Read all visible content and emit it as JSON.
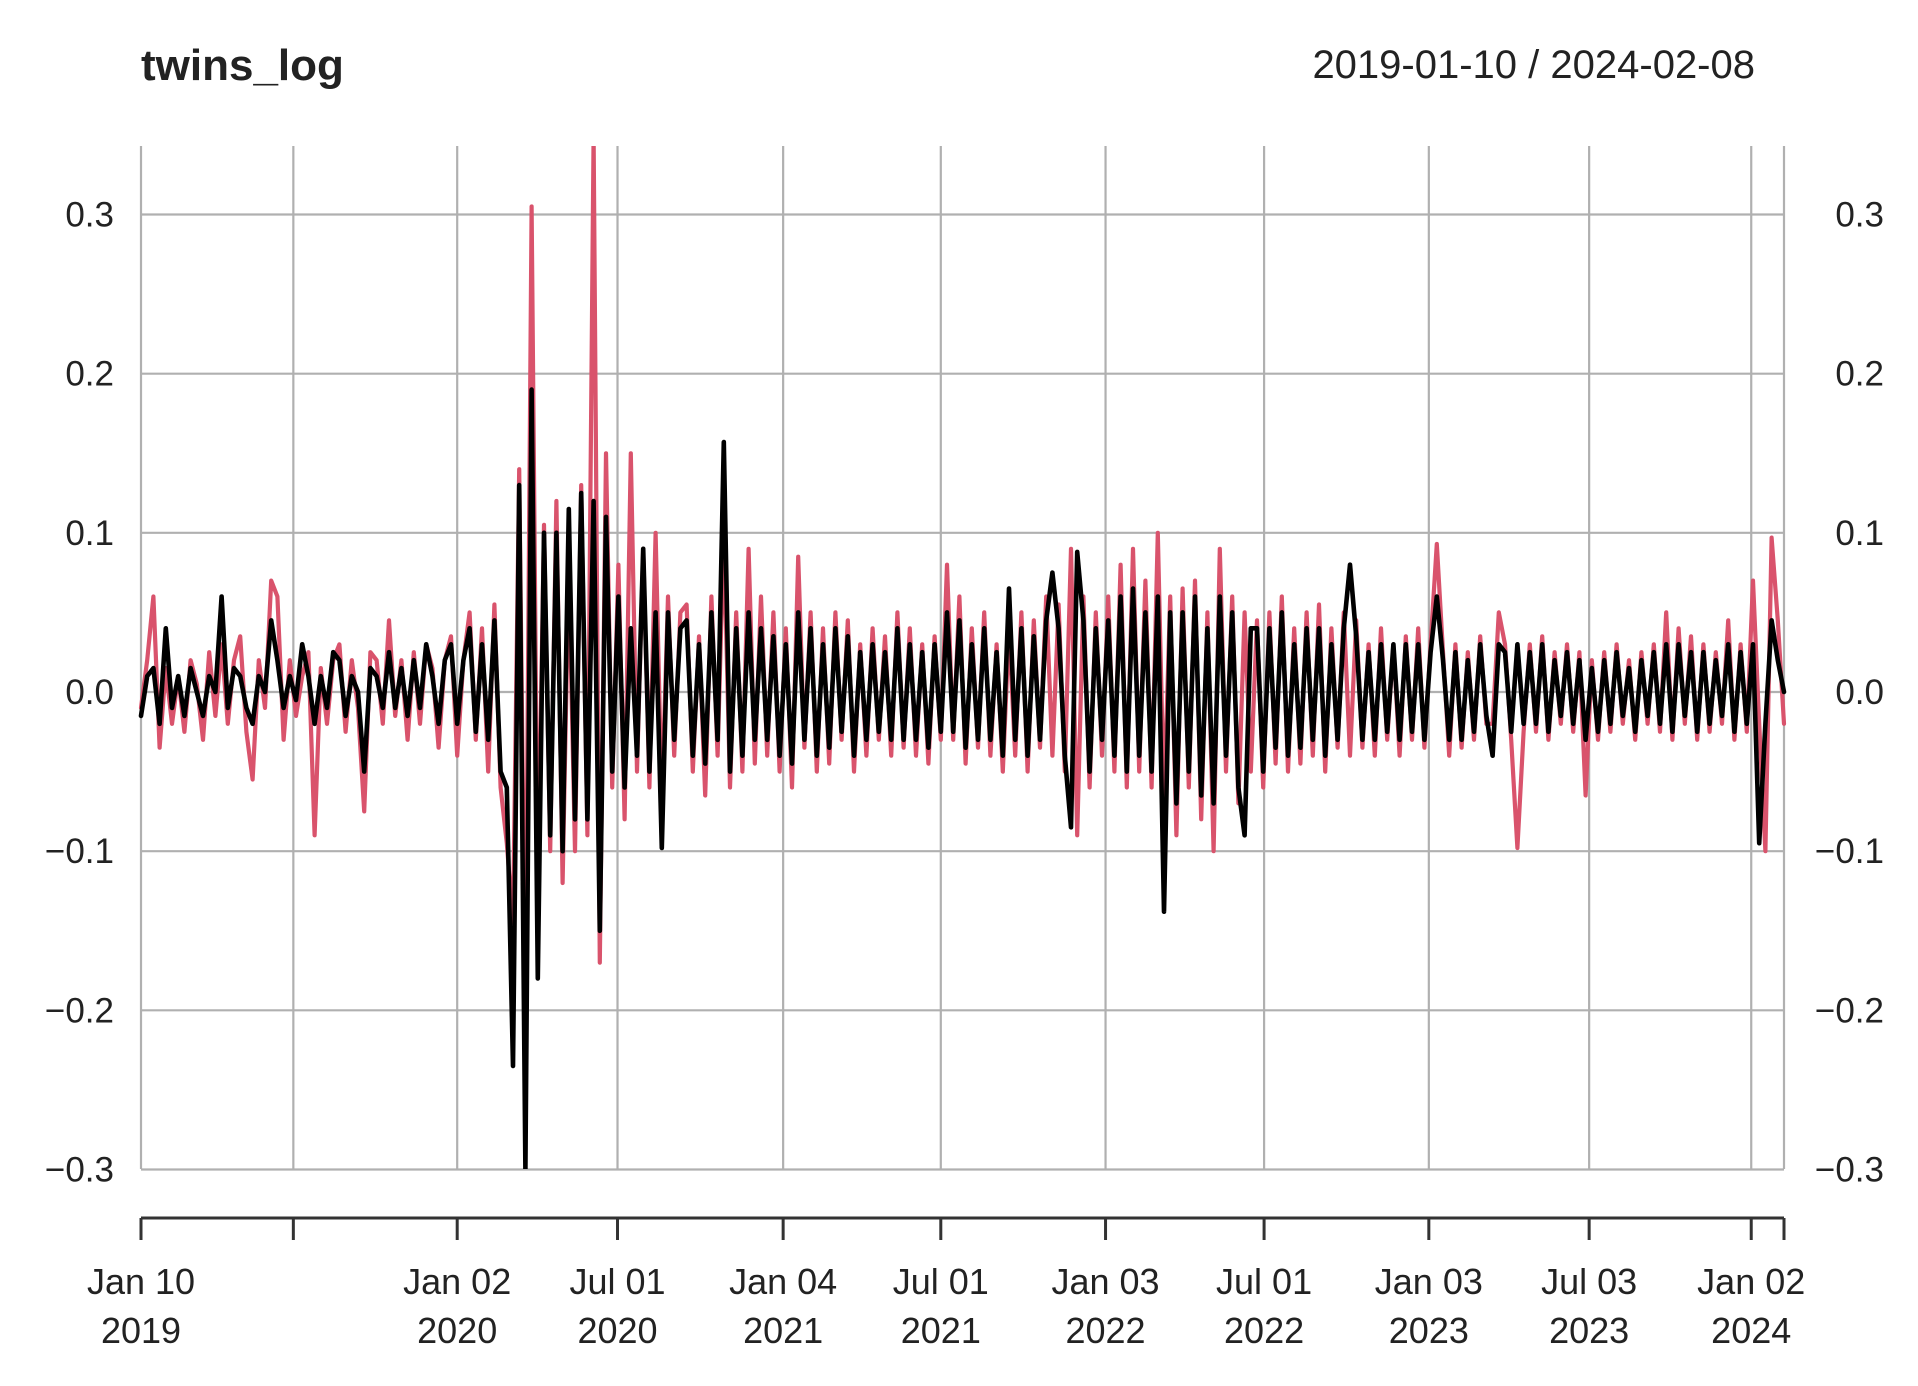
{
  "chart_data": {
    "type": "line",
    "title": "twins_log",
    "date_range_label": "2019-01-10 / 2024-02-08",
    "xlabel": "",
    "ylabel": "",
    "x_start": "2019-01-10",
    "x_end": "2024-02-08",
    "step_days": 7,
    "ylim": [
      -0.3,
      0.343
    ],
    "grid": true,
    "legend": "none",
    "y_ticks": [
      {
        "value": 0.3,
        "label": "0.3"
      },
      {
        "value": 0.2,
        "label": "0.2"
      },
      {
        "value": 0.1,
        "label": "0.1"
      },
      {
        "value": 0.0,
        "label": "0.0"
      },
      {
        "value": -0.1,
        "label": "−0.1"
      },
      {
        "value": -0.2,
        "label": "−0.2"
      },
      {
        "value": -0.3,
        "label": "−0.3"
      }
    ],
    "x_ticks": [
      {
        "date": "2019-01-10",
        "line1": "Jan 10",
        "line2": "2019"
      },
      {
        "date": "2019-07-01",
        "line1": "",
        "line2": ""
      },
      {
        "date": "2020-01-02",
        "line1": "Jan 02",
        "line2": "2020"
      },
      {
        "date": "2020-07-01",
        "line1": "Jul 01",
        "line2": "2020"
      },
      {
        "date": "2021-01-04",
        "line1": "Jan 04",
        "line2": "2021"
      },
      {
        "date": "2021-07-01",
        "line1": "Jul 01",
        "line2": "2021"
      },
      {
        "date": "2022-01-03",
        "line1": "Jan 03",
        "line2": "2022"
      },
      {
        "date": "2022-07-01",
        "line1": "Jul 01",
        "line2": "2022"
      },
      {
        "date": "2023-01-03",
        "line1": "Jan 03",
        "line2": "2023"
      },
      {
        "date": "2023-07-03",
        "line1": "Jul 03",
        "line2": "2023"
      },
      {
        "date": "2024-01-02",
        "line1": "Jan 02",
        "line2": "2024"
      },
      {
        "date": "2024-02-08",
        "line1": "",
        "line2": ""
      }
    ],
    "series": [
      {
        "name": "series-red",
        "color": "#D9536C",
        "values": [
          -0.01,
          0.02,
          0.06,
          -0.035,
          0.015,
          -0.02,
          0.01,
          -0.025,
          0.02,
          0.005,
          -0.03,
          0.025,
          -0.015,
          0.03,
          -0.02,
          0.02,
          0.035,
          -0.025,
          -0.055,
          0.02,
          -0.01,
          0.07,
          0.06,
          -0.03,
          0.02,
          -0.015,
          0.01,
          0.025,
          -0.09,
          0.015,
          -0.02,
          0.02,
          0.03,
          -0.025,
          0.02,
          -0.01,
          -0.075,
          0.025,
          0.02,
          -0.02,
          0.045,
          -0.015,
          0.02,
          -0.03,
          0.025,
          -0.02,
          0.03,
          0.015,
          -0.035,
          0.02,
          0.035,
          -0.04,
          0.02,
          0.05,
          -0.03,
          0.04,
          -0.05,
          0.055,
          -0.06,
          -0.095,
          -0.145,
          0.14,
          -0.2,
          0.305,
          -0.13,
          0.105,
          -0.1,
          0.12,
          -0.12,
          0.08,
          -0.1,
          0.13,
          -0.09,
          0.35,
          -0.17,
          0.15,
          -0.06,
          0.08,
          -0.08,
          0.15,
          -0.05,
          0.09,
          -0.06,
          0.1,
          -0.07,
          0.06,
          -0.04,
          0.05,
          0.055,
          -0.05,
          0.035,
          -0.065,
          0.06,
          -0.04,
          0.1,
          -0.06,
          0.05,
          -0.05,
          0.09,
          -0.045,
          0.06,
          -0.04,
          0.05,
          -0.05,
          0.04,
          -0.06,
          0.085,
          -0.035,
          0.05,
          -0.05,
          0.04,
          -0.045,
          0.05,
          -0.03,
          0.045,
          -0.05,
          0.03,
          -0.04,
          0.04,
          -0.03,
          0.035,
          -0.04,
          0.05,
          -0.035,
          0.04,
          -0.04,
          0.03,
          -0.045,
          0.035,
          -0.03,
          0.08,
          -0.03,
          0.06,
          -0.045,
          0.04,
          -0.035,
          0.05,
          -0.04,
          0.03,
          -0.05,
          0.04,
          -0.04,
          0.05,
          -0.05,
          0.045,
          -0.035,
          0.06,
          -0.04,
          0.055,
          -0.05,
          0.09,
          -0.09,
          0.06,
          -0.06,
          0.05,
          -0.04,
          0.06,
          -0.05,
          0.08,
          -0.06,
          0.09,
          -0.05,
          0.07,
          -0.06,
          0.1,
          -0.07,
          0.06,
          -0.09,
          0.065,
          -0.06,
          0.07,
          -0.08,
          0.05,
          -0.1,
          0.09,
          -0.05,
          0.06,
          -0.07,
          0.05,
          -0.05,
          0.045,
          -0.06,
          0.05,
          -0.045,
          0.06,
          -0.05,
          0.04,
          -0.045,
          0.05,
          -0.04,
          0.055,
          -0.05,
          0.04,
          -0.035,
          0.05,
          -0.04,
          0.045,
          -0.035,
          0.03,
          -0.04,
          0.04,
          -0.03,
          0.03,
          -0.04,
          0.035,
          -0.03,
          0.04,
          -0.035,
          0.03,
          0.093,
          0.025,
          -0.04,
          0.03,
          -0.035,
          0.025,
          -0.03,
          0.035,
          -0.02,
          -0.02,
          0.05,
          0.03,
          -0.03,
          -0.098,
          -0.025,
          0.03,
          -0.025,
          0.035,
          -0.03,
          0.025,
          -0.02,
          0.03,
          -0.025,
          0.025,
          -0.065,
          0.02,
          -0.03,
          0.025,
          -0.025,
          0.03,
          -0.02,
          0.02,
          -0.03,
          0.025,
          -0.02,
          0.03,
          -0.025,
          0.05,
          -0.03,
          0.04,
          -0.02,
          0.035,
          -0.03,
          0.03,
          -0.025,
          0.025,
          -0.02,
          0.045,
          -0.03,
          0.03,
          -0.025,
          0.07,
          -0.02,
          -0.1,
          0.097,
          0.045,
          -0.02
        ]
      },
      {
        "name": "series-black",
        "color": "#000000",
        "values": [
          -0.015,
          0.01,
          0.015,
          -0.02,
          0.04,
          -0.01,
          0.01,
          -0.015,
          0.015,
          0.0,
          -0.015,
          0.01,
          0.0,
          0.06,
          -0.01,
          0.015,
          0.01,
          -0.01,
          -0.02,
          0.01,
          0.0,
          0.045,
          0.02,
          -0.01,
          0.01,
          -0.005,
          0.03,
          0.01,
          -0.02,
          0.01,
          -0.01,
          0.025,
          0.02,
          -0.015,
          0.01,
          0.0,
          -0.05,
          0.015,
          0.01,
          -0.01,
          0.025,
          -0.01,
          0.015,
          -0.015,
          0.02,
          -0.01,
          0.03,
          0.01,
          -0.02,
          0.02,
          0.03,
          -0.02,
          0.02,
          0.04,
          -0.025,
          0.03,
          -0.03,
          0.045,
          -0.05,
          -0.06,
          -0.235,
          0.13,
          -0.3,
          0.19,
          -0.18,
          0.1,
          -0.09,
          0.1,
          -0.1,
          0.115,
          -0.08,
          0.125,
          -0.08,
          0.12,
          -0.15,
          0.11,
          -0.05,
          0.06,
          -0.06,
          0.04,
          -0.04,
          0.09,
          -0.05,
          0.05,
          -0.098,
          0.05,
          -0.03,
          0.04,
          0.045,
          -0.04,
          0.03,
          -0.045,
          0.05,
          -0.03,
          0.157,
          -0.05,
          0.04,
          -0.04,
          0.05,
          -0.03,
          0.04,
          -0.03,
          0.035,
          -0.04,
          0.03,
          -0.045,
          0.05,
          -0.03,
          0.04,
          -0.04,
          0.03,
          -0.035,
          0.04,
          -0.025,
          0.035,
          -0.04,
          0.025,
          -0.03,
          0.03,
          -0.025,
          0.025,
          -0.03,
          0.04,
          -0.03,
          0.03,
          -0.03,
          0.025,
          -0.035,
          0.03,
          -0.025,
          0.05,
          -0.025,
          0.045,
          -0.035,
          0.03,
          -0.03,
          0.04,
          -0.03,
          0.025,
          -0.04,
          0.065,
          -0.03,
          0.04,
          -0.04,
          0.035,
          -0.03,
          0.045,
          0.075,
          0.04,
          -0.04,
          -0.085,
          0.088,
          0.045,
          -0.05,
          0.04,
          -0.03,
          0.045,
          -0.04,
          0.06,
          -0.05,
          0.065,
          -0.04,
          0.05,
          -0.05,
          0.06,
          -0.138,
          0.05,
          -0.07,
          0.05,
          -0.05,
          0.06,
          -0.065,
          0.04,
          -0.07,
          0.06,
          -0.04,
          0.05,
          -0.06,
          -0.09,
          0.04,
          0.04,
          -0.05,
          0.04,
          -0.035,
          0.05,
          -0.04,
          0.03,
          -0.035,
          0.04,
          -0.03,
          0.04,
          -0.04,
          0.03,
          -0.03,
          0.04,
          0.08,
          0.035,
          -0.03,
          0.025,
          -0.03,
          0.03,
          -0.025,
          0.03,
          -0.03,
          0.03,
          -0.025,
          0.03,
          -0.03,
          0.025,
          0.06,
          0.02,
          -0.03,
          0.025,
          -0.03,
          0.02,
          -0.025,
          0.03,
          -0.015,
          -0.04,
          0.03,
          0.025,
          -0.025,
          0.03,
          -0.02,
          0.025,
          -0.02,
          0.03,
          -0.025,
          0.02,
          -0.015,
          0.025,
          -0.02,
          0.02,
          -0.03,
          0.015,
          -0.025,
          0.02,
          -0.02,
          0.025,
          -0.015,
          0.015,
          -0.025,
          0.02,
          -0.015,
          0.025,
          -0.02,
          0.03,
          -0.025,
          0.03,
          -0.015,
          0.025,
          -0.025,
          0.025,
          -0.02,
          0.02,
          -0.015,
          0.03,
          -0.025,
          0.025,
          -0.02,
          0.03,
          -0.095,
          -0.02,
          0.045,
          0.02,
          0.0
        ]
      }
    ]
  }
}
